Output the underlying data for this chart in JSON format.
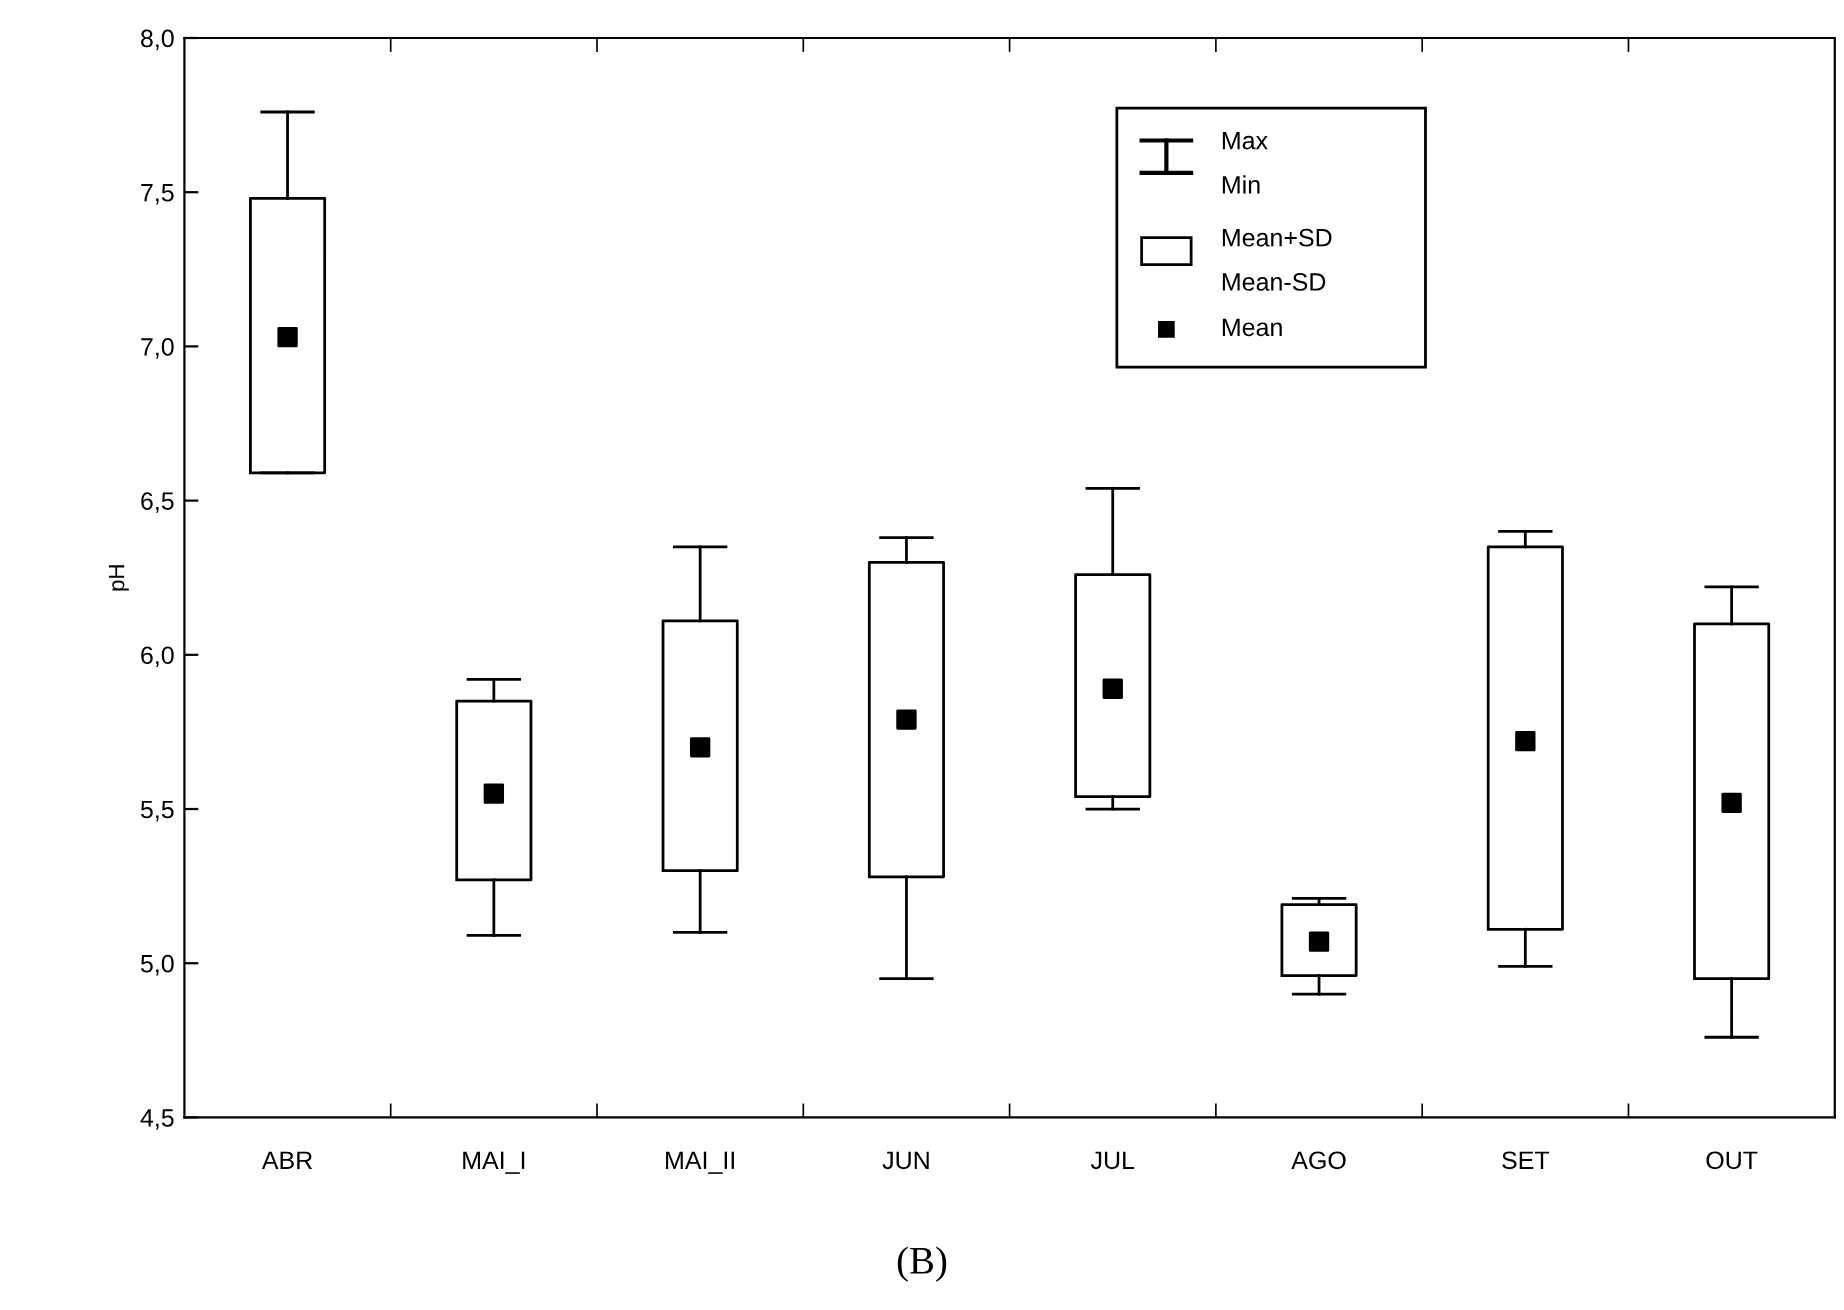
{
  "chart_data": {
    "type": "box",
    "ylabel": "pH",
    "categories": [
      "ABR",
      "MAI_I",
      "MAI_II",
      "JUN",
      "JUL",
      "AGO",
      "SET",
      "OUT"
    ],
    "boxes": [
      {
        "low": 6.59,
        "q1": 6.59,
        "q3": 7.48,
        "high": 7.76,
        "mean": 7.03
      },
      {
        "low": 5.09,
        "q1": 5.27,
        "q3": 5.85,
        "high": 5.92,
        "mean": 5.55
      },
      {
        "low": 5.1,
        "q1": 5.3,
        "q3": 6.11,
        "high": 6.35,
        "mean": 5.7
      },
      {
        "low": 4.95,
        "q1": 5.28,
        "q3": 6.3,
        "high": 6.38,
        "mean": 5.79
      },
      {
        "low": 5.5,
        "q1": 5.54,
        "q3": 6.26,
        "high": 6.54,
        "mean": 5.89
      },
      {
        "low": 4.9,
        "q1": 4.96,
        "q3": 5.19,
        "high": 5.21,
        "mean": 5.07
      },
      {
        "low": 4.99,
        "q1": 5.11,
        "q3": 6.35,
        "high": 6.4,
        "mean": 5.72
      },
      {
        "low": 4.76,
        "q1": 4.95,
        "q3": 6.1,
        "high": 6.22,
        "mean": 5.52
      }
    ],
    "color": "#000000",
    "marker": "square",
    "ylim": [
      4.5,
      8.0
    ],
    "yticks": [
      {
        "value": 4.5,
        "label": "4,5"
      },
      {
        "value": 5.0,
        "label": "5,0"
      },
      {
        "value": 5.5,
        "label": "5,5"
      },
      {
        "value": 6.0,
        "label": "6,0"
      },
      {
        "value": 6.5,
        "label": "6,5"
      },
      {
        "value": 7.0,
        "label": "7,0"
      },
      {
        "value": 7.5,
        "label": "7,5"
      },
      {
        "value": 8.0,
        "label": "8,0"
      }
    ],
    "grid": false,
    "annotations": [
      "Max",
      "Min",
      "Mean+SD",
      "Mean-SD",
      "Mean",
      "(B)"
    ]
  }
}
